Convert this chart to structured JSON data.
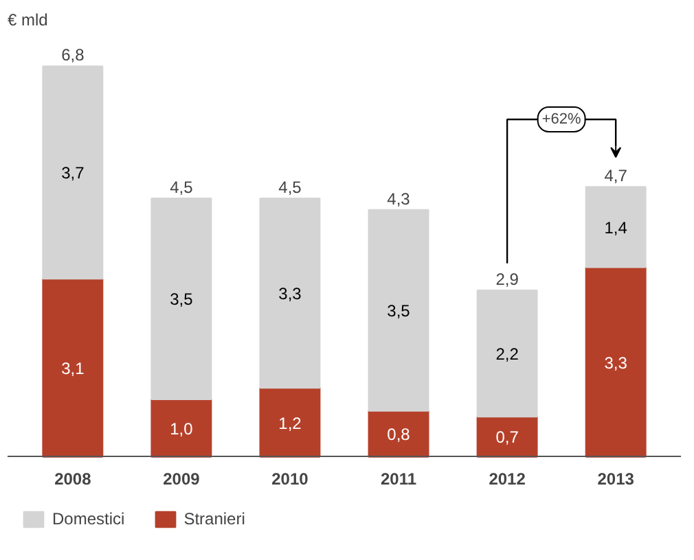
{
  "chart_data": {
    "type": "bar",
    "stacked": true,
    "ylabel": "€ mld",
    "categories": [
      "2008",
      "2009",
      "2010",
      "2011",
      "2012",
      "2013"
    ],
    "series": [
      {
        "name": "Stranieri",
        "color": "#b5402a",
        "values": [
          3.1,
          1.0,
          1.2,
          0.8,
          0.7,
          3.3
        ],
        "value_labels": [
          "3,1",
          "1,0",
          "1,2",
          "0,8",
          "0,7",
          "3,3"
        ]
      },
      {
        "name": "Domestici",
        "color": "#d4d4d4",
        "values": [
          3.7,
          3.5,
          3.3,
          3.5,
          2.2,
          1.4
        ],
        "value_labels": [
          "3,7",
          "3,5",
          "3,3",
          "3,5",
          "2,2",
          "1,4"
        ]
      }
    ],
    "totals": [
      "6,8",
      "4,5",
      "4,5",
      "4,3",
      "2,9",
      "4,7"
    ],
    "annotations": [
      "+62%"
    ],
    "legend": "bottom",
    "grid": false
  }
}
